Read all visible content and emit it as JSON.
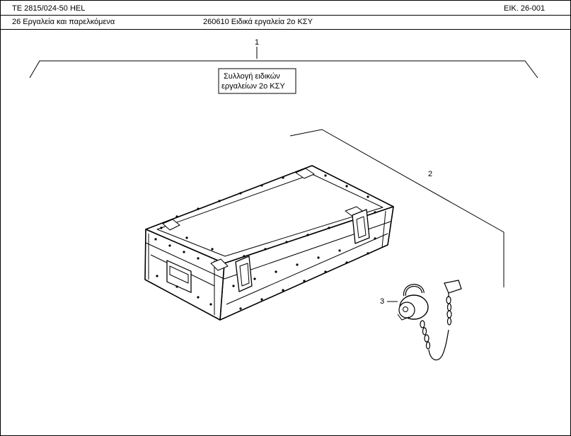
{
  "header": {
    "doc_number": "TE 2815/024-50 HEL",
    "figure_number": "ΕΙΚ. 26-001",
    "section": "26  Εργαλεία και παρελκόμενα",
    "subsection": "260610  Ειδικά εργαλεία 2ο ΚΣΥ"
  },
  "callouts": {
    "assembly_number": "1",
    "assembly_label_line1": "Συλλογή ειδικών",
    "assembly_label_line2": "εργαλείων 2ο ΚΣΥ",
    "case_number": "2",
    "padlock_number": "3"
  }
}
